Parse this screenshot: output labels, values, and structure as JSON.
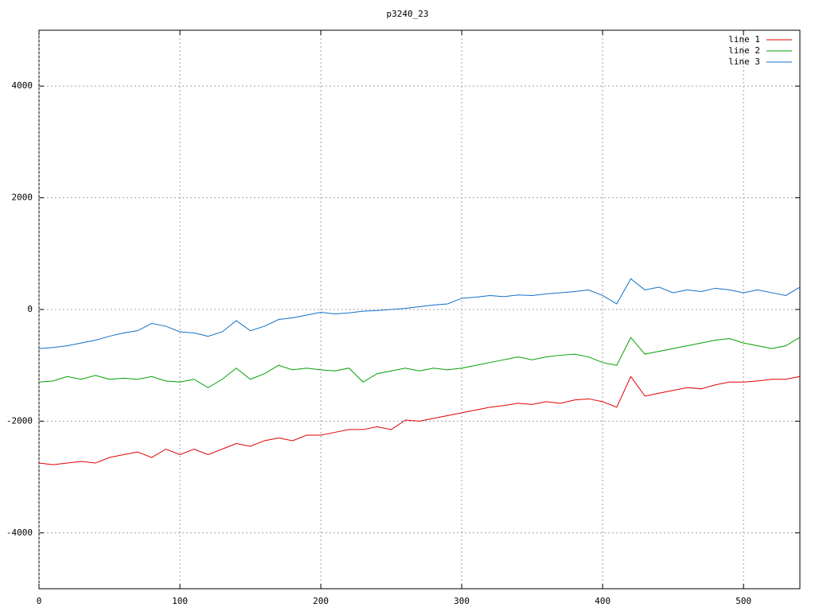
{
  "chart_data": {
    "type": "line",
    "title": "p3240_23",
    "x": [
      0,
      10,
      20,
      30,
      40,
      50,
      60,
      70,
      80,
      90,
      100,
      110,
      120,
      130,
      140,
      150,
      160,
      170,
      180,
      190,
      200,
      210,
      220,
      230,
      240,
      250,
      260,
      270,
      280,
      290,
      300,
      310,
      320,
      330,
      340,
      350,
      360,
      370,
      380,
      390,
      400,
      410,
      420,
      430,
      440,
      450,
      460,
      470,
      480,
      490,
      500,
      510,
      520,
      530,
      540
    ],
    "series": [
      {
        "name": "line 1",
        "color": "#e00000",
        "values": [
          -2750,
          -2780,
          -2750,
          -2720,
          -2750,
          -2650,
          -2600,
          -2550,
          -2650,
          -2500,
          -2600,
          -2500,
          -2600,
          -2500,
          -2400,
          -2450,
          -2350,
          -2300,
          -2350,
          -2250,
          -2250,
          -2200,
          -2150,
          -2150,
          -2100,
          -2150,
          -1980,
          -2000,
          -1950,
          -1900,
          -1850,
          -1800,
          -1750,
          -1720,
          -1680,
          -1700,
          -1650,
          -1680,
          -1620,
          -1600,
          -1650,
          -1750,
          -1200,
          -1550,
          -1500,
          -1450,
          -1400,
          -1420,
          -1350,
          -1300,
          -1300,
          -1280,
          -1250,
          -1250,
          -1200
        ]
      },
      {
        "name": "line 2",
        "color": "#00a000",
        "values": [
          -1300,
          -1280,
          -1200,
          -1250,
          -1180,
          -1250,
          -1230,
          -1250,
          -1200,
          -1280,
          -1300,
          -1250,
          -1400,
          -1250,
          -1050,
          -1250,
          -1150,
          -1000,
          -1080,
          -1050,
          -1080,
          -1100,
          -1050,
          -1300,
          -1150,
          -1100,
          -1050,
          -1100,
          -1050,
          -1080,
          -1050,
          -1000,
          -950,
          -900,
          -850,
          -900,
          -850,
          -820,
          -800,
          -850,
          -950,
          -1000,
          -500,
          -800,
          -750,
          -700,
          -650,
          -600,
          -550,
          -520,
          -600,
          -650,
          -700,
          -650,
          -500
        ]
      },
      {
        "name": "line 3",
        "color": "#1070c8",
        "values": [
          -700,
          -680,
          -650,
          -600,
          -550,
          -480,
          -420,
          -380,
          -250,
          -300,
          -400,
          -420,
          -480,
          -400,
          -200,
          -380,
          -300,
          -180,
          -150,
          -100,
          -50,
          -80,
          -60,
          -30,
          -20,
          0,
          20,
          50,
          80,
          100,
          200,
          220,
          250,
          230,
          260,
          250,
          280,
          300,
          320,
          350,
          250,
          100,
          550,
          350,
          400,
          300,
          350,
          320,
          380,
          350,
          300,
          350,
          300,
          250,
          400
        ]
      }
    ],
    "xlim": [
      0,
      540
    ],
    "ylim": [
      -5000,
      5000
    ],
    "xticks": [
      0,
      100,
      200,
      300,
      400,
      500
    ],
    "yticks": [
      -4000,
      -2000,
      0,
      2000,
      4000
    ],
    "grid": true,
    "legend": "top-right"
  }
}
